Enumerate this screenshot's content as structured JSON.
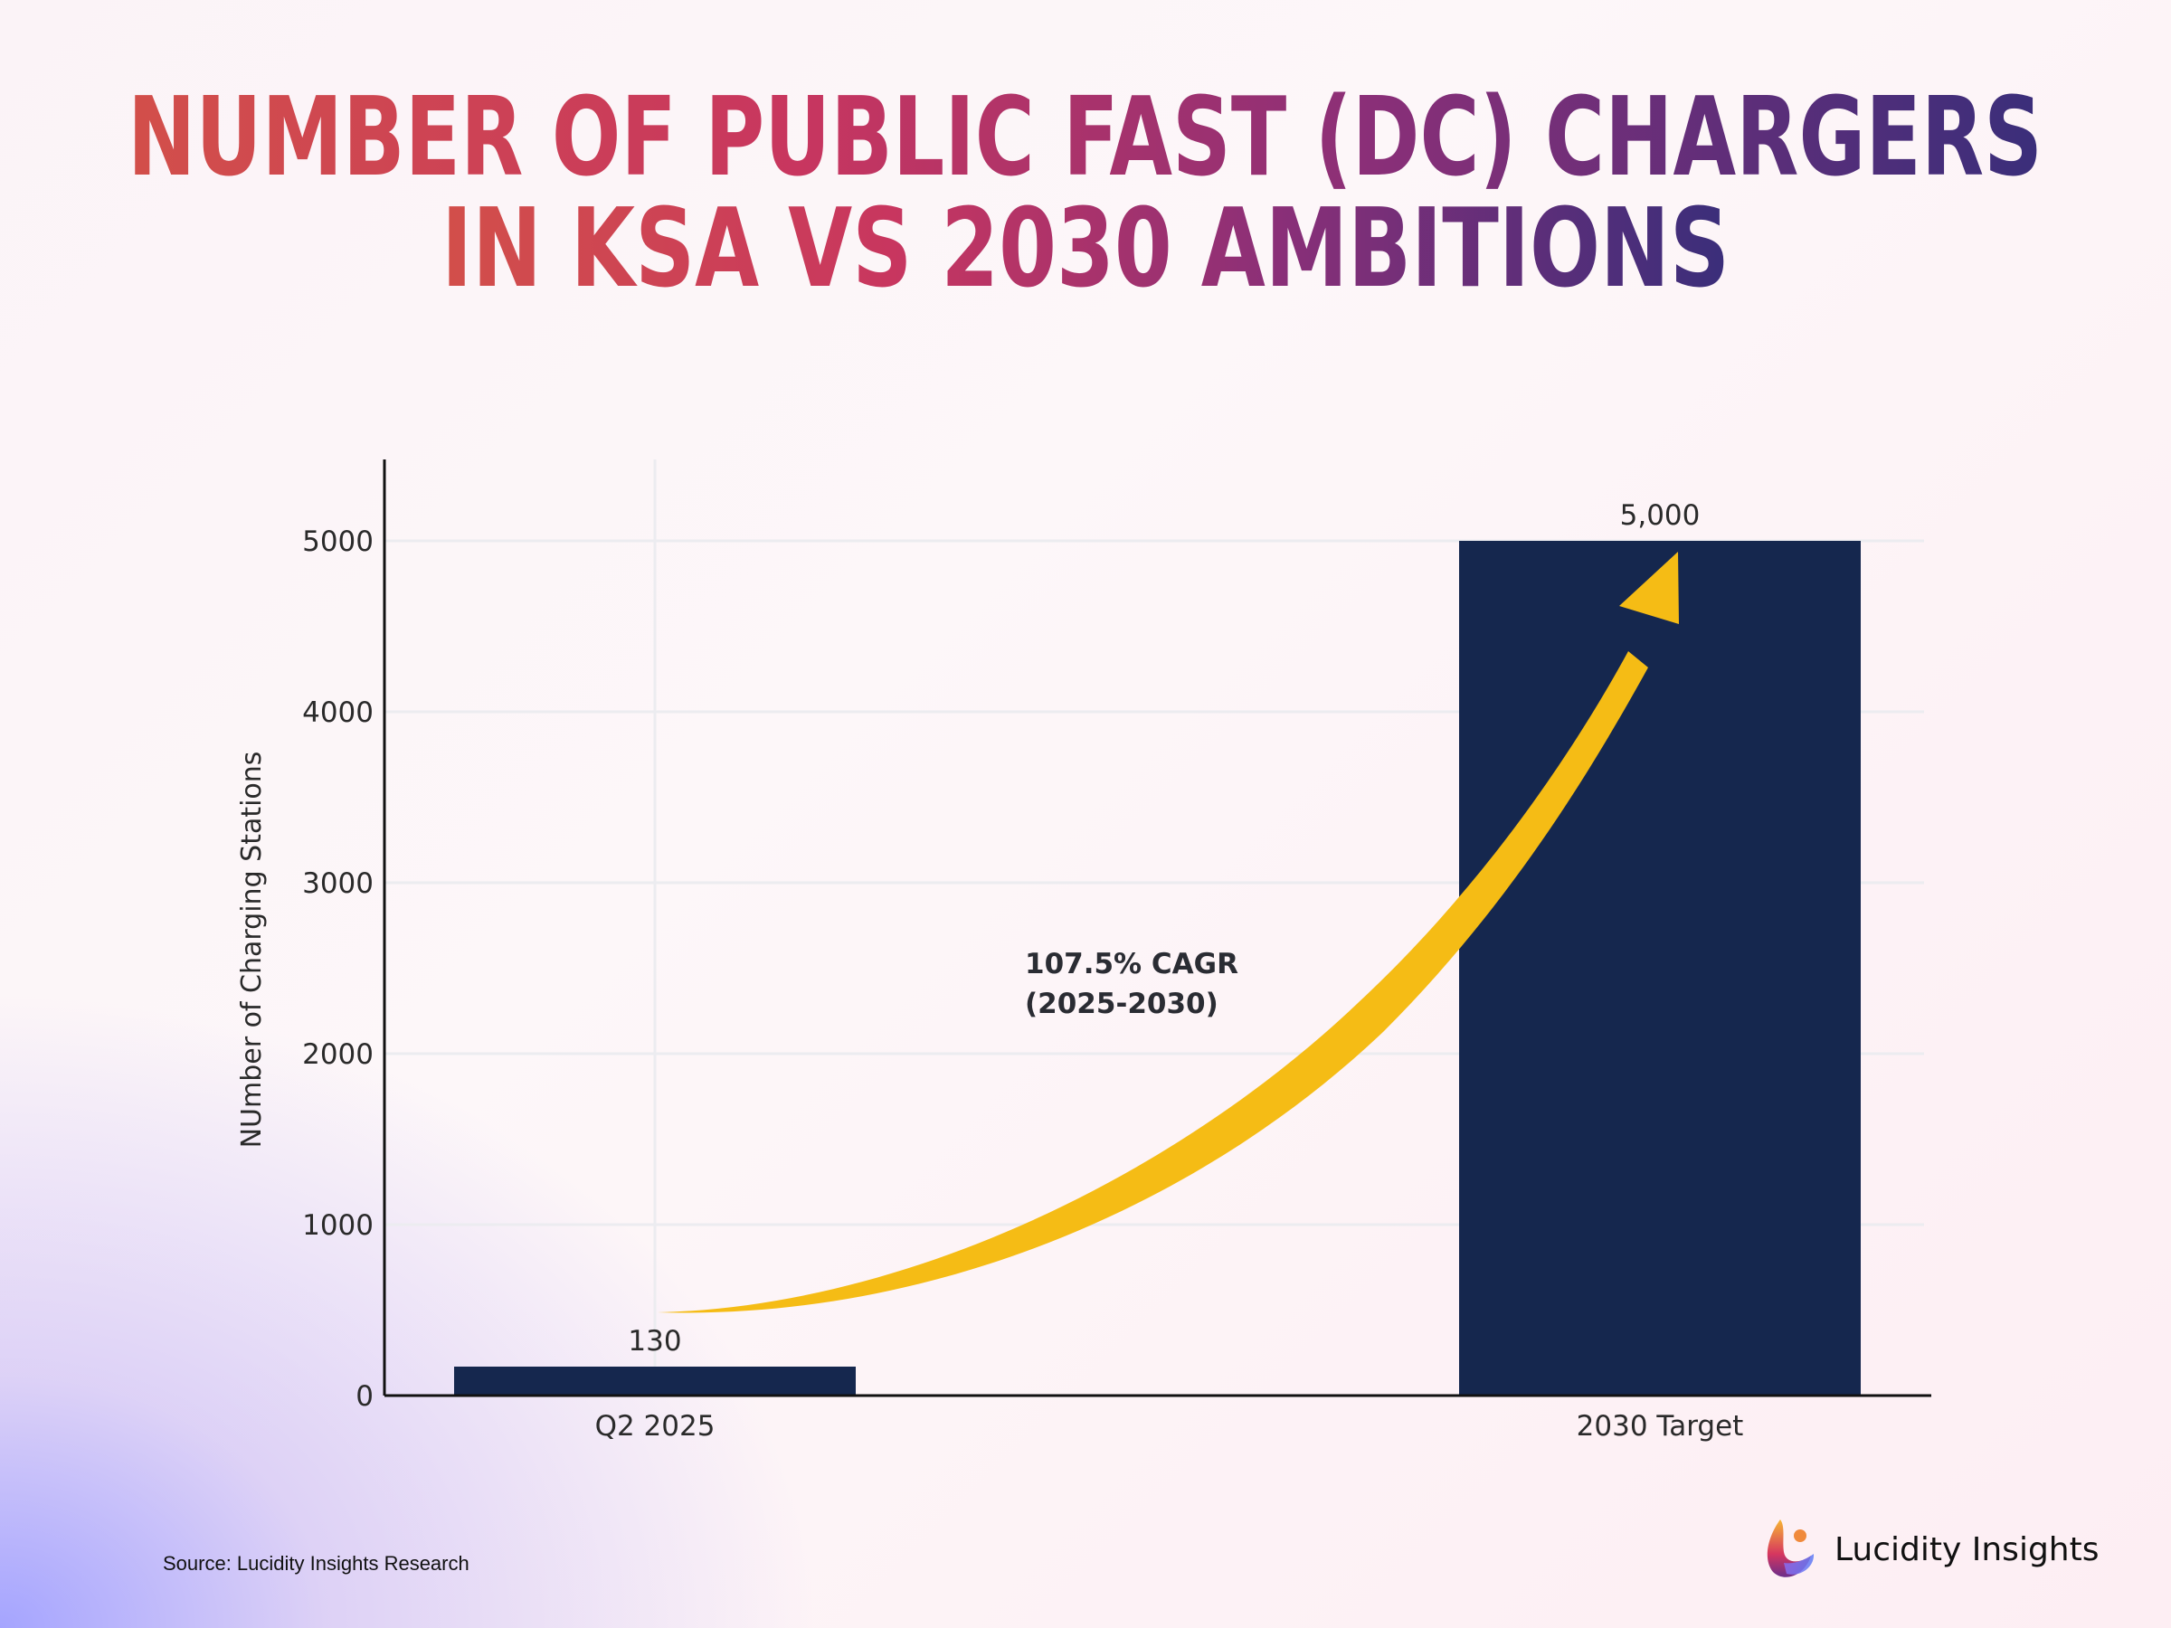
{
  "title_lines": [
    "NUMBER OF PUBLIC FAST (DC) CHARGERS",
    "IN KSA VS 2030 AMBITIONS"
  ],
  "title_gradient": [
    "#d24f4a",
    "#c8365f",
    "#8a2f78",
    "#3a2e7a"
  ],
  "chart_data": {
    "type": "bar",
    "categories": [
      "Q2 2025",
      "2030 Target"
    ],
    "values": [
      130,
      5000
    ],
    "data_labels": [
      "130",
      "5,000"
    ],
    "ylabel": "NUmber of Charging Stations",
    "xlabel": "",
    "ylim": [
      0,
      5450
    ],
    "yticks": [
      0,
      1000,
      2000,
      3000,
      4000,
      5000
    ],
    "ytick_labels": [
      "0",
      "1000",
      "2000",
      "3000",
      "4000",
      "5000"
    ],
    "grid": true,
    "bar_color": "#15274e",
    "annotation": {
      "lines": [
        "107.5% CAGR",
        "(2025-2030)"
      ],
      "arrow_color": "#f5bc15",
      "arrow": "curved, from Q2 2025 to 2030 Target"
    }
  },
  "source": "Source: Lucidity Insights Research",
  "brand": "Lucidity Insights"
}
